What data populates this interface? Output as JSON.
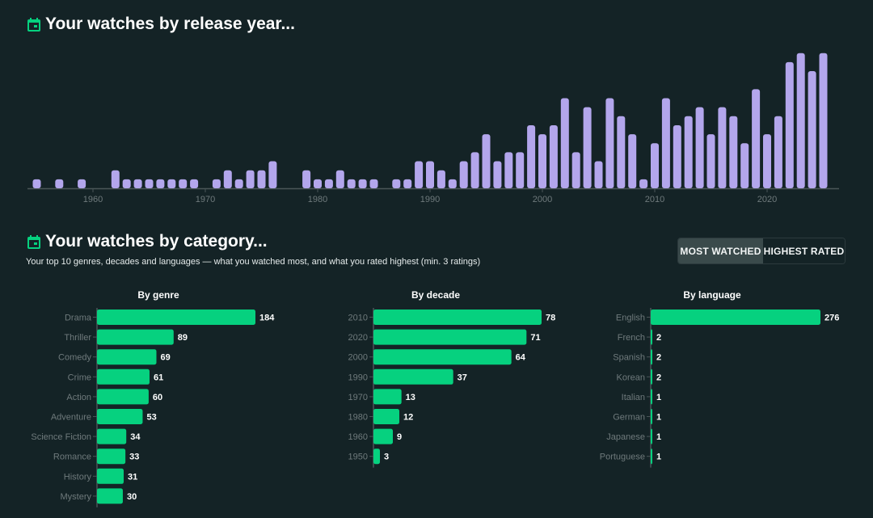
{
  "sections": {
    "year": {
      "title": "Your watches by release year...",
      "icon": "calendar-icon"
    },
    "category": {
      "title": "Your watches by category...",
      "icon": "calendar-icon",
      "subtitle": "Your top 10 genres, decades and languages — what you watched most, and what you rated highest (min. 3 ratings)",
      "toggle": {
        "options": [
          "MOST WATCHED",
          "HIGHEST RATED"
        ],
        "selected": "MOST WATCHED"
      }
    }
  },
  "colors": {
    "background": "#142326",
    "year_bar": "#b3a6ec",
    "category_bar": "#06d17f",
    "axis": "#4a5658",
    "tick_label": "#6f7a7c"
  },
  "chart_data": [
    {
      "type": "bar",
      "title": "Your watches by release year...",
      "xlabel": "",
      "ylabel": "",
      "xticks": [
        1960,
        1970,
        1980,
        1990,
        2000,
        2010,
        2020
      ],
      "xlim": [
        1954,
        2027
      ],
      "ylim": [
        0,
        15
      ],
      "grid": false,
      "x": [
        1955,
        1957,
        1959,
        1962,
        1963,
        1964,
        1965,
        1966,
        1967,
        1968,
        1969,
        1971,
        1972,
        1973,
        1974,
        1975,
        1976,
        1979,
        1980,
        1981,
        1982,
        1983,
        1984,
        1985,
        1987,
        1988,
        1989,
        1990,
        1991,
        1992,
        1993,
        1994,
        1995,
        1996,
        1997,
        1998,
        1999,
        2000,
        2001,
        2002,
        2003,
        2004,
        2005,
        2006,
        2007,
        2008,
        2009,
        2010,
        2011,
        2012,
        2013,
        2014,
        2015,
        2016,
        2017,
        2018,
        2019,
        2020,
        2021,
        2022,
        2023,
        2024,
        2025
      ],
      "values": [
        1,
        1,
        1,
        2,
        1,
        1,
        1,
        1,
        1,
        1,
        1,
        1,
        2,
        1,
        2,
        2,
        3,
        2,
        1,
        1,
        2,
        1,
        1,
        1,
        1,
        1,
        3,
        3,
        2,
        1,
        3,
        4,
        6,
        3,
        4,
        4,
        7,
        6,
        7,
        10,
        4,
        9,
        3,
        10,
        8,
        6,
        1,
        5,
        10,
        7,
        8,
        9,
        6,
        9,
        8,
        5,
        11,
        6,
        8,
        14,
        15,
        13,
        15
      ]
    },
    {
      "type": "bar",
      "orientation": "horizontal",
      "title": "By genre",
      "categories": [
        "Drama",
        "Thriller",
        "Comedy",
        "Crime",
        "Action",
        "Adventure",
        "Science Fiction",
        "Romance",
        "History",
        "Mystery"
      ],
      "values": [
        184,
        89,
        69,
        61,
        60,
        53,
        34,
        33,
        31,
        30
      ]
    },
    {
      "type": "bar",
      "orientation": "horizontal",
      "title": "By decade",
      "categories": [
        "2010",
        "2020",
        "2000",
        "1990",
        "1970",
        "1980",
        "1960",
        "1950"
      ],
      "values": [
        78,
        71,
        64,
        37,
        13,
        12,
        9,
        3
      ]
    },
    {
      "type": "bar",
      "orientation": "horizontal",
      "title": "By language",
      "categories": [
        "English",
        "French",
        "Spanish",
        "Korean",
        "Italian",
        "German",
        "Japanese",
        "Portuguese"
      ],
      "values": [
        276,
        2,
        2,
        2,
        1,
        1,
        1,
        1
      ]
    }
  ]
}
